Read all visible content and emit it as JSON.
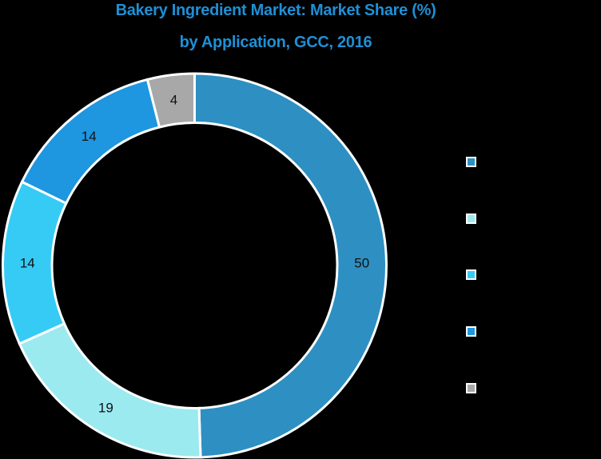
{
  "title_line1": "Bakery Ingredient Market: Market Share (%)",
  "title_line2": "by Application, GCC, 2016",
  "chart_data": {
    "type": "pie",
    "subtype": "donut",
    "title": "Bakery Ingredient Market: Market Share (%) by Application, GCC, 2016",
    "categories": [
      "",
      "",
      "",
      "",
      ""
    ],
    "values": [
      50,
      19,
      14,
      14,
      4
    ],
    "colors": [
      "#2e8fc2",
      "#9beaf0",
      "#35cbf5",
      "#1e96e0",
      "#a8a8a8"
    ],
    "data_labels": [
      "50",
      "19",
      "14",
      "14",
      "4"
    ],
    "legend_position": "right",
    "start_angle_deg": 0,
    "direction": "clockwise"
  },
  "legend": {
    "items": [
      {
        "label": "",
        "color": "#2e8fc2"
      },
      {
        "label": "",
        "color": "#9beaf0"
      },
      {
        "label": "",
        "color": "#35cbf5"
      },
      {
        "label": "",
        "color": "#1e96e0"
      },
      {
        "label": "",
        "color": "#a8a8a8"
      }
    ]
  }
}
